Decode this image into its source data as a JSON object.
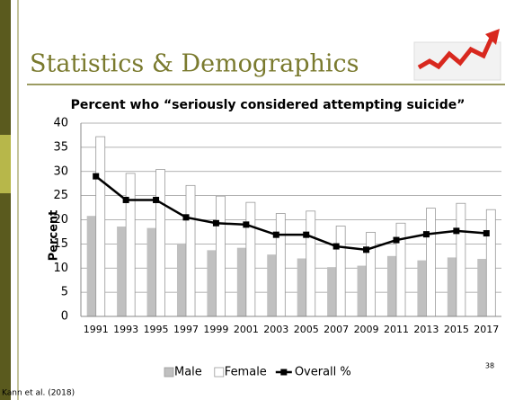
{
  "slide": {
    "title": "Statistics & Demographics",
    "number": "38",
    "citation": "Kann et al. (2018)"
  },
  "chart_data": {
    "type": "bar_line",
    "title": "Percent who “seriously considered attempting suicide”",
    "ylabel": "Percent",
    "categories": [
      "1991",
      "1993",
      "1995",
      "1997",
      "1999",
      "2001",
      "2003",
      "2005",
      "2007",
      "2009",
      "2011",
      "2013",
      "2015",
      "2017"
    ],
    "series": [
      {
        "name": "Male",
        "kind": "bar",
        "color": "#c0c0c0",
        "values": [
          20.8,
          18.6,
          18.3,
          15.1,
          13.7,
          14.2,
          12.8,
          12.0,
          10.2,
          10.5,
          12.5,
          11.6,
          12.2,
          11.9
        ]
      },
      {
        "name": "Female",
        "kind": "bar",
        "color": "#ffffff",
        "values": [
          37.2,
          29.6,
          30.4,
          27.1,
          24.9,
          23.6,
          21.3,
          21.8,
          18.7,
          17.4,
          19.3,
          22.4,
          23.4,
          22.1
        ]
      },
      {
        "name": "Overall %",
        "kind": "line",
        "color": "#000000",
        "values": [
          29.0,
          24.1,
          24.1,
          20.5,
          19.3,
          19.0,
          16.9,
          16.9,
          14.5,
          13.8,
          15.8,
          17.0,
          17.7,
          17.2
        ]
      }
    ],
    "ylim": [
      0,
      40
    ],
    "yticks": [
      0,
      5,
      10,
      15,
      20,
      25,
      30,
      35,
      40
    ],
    "grid": true,
    "legend": "bottom"
  }
}
